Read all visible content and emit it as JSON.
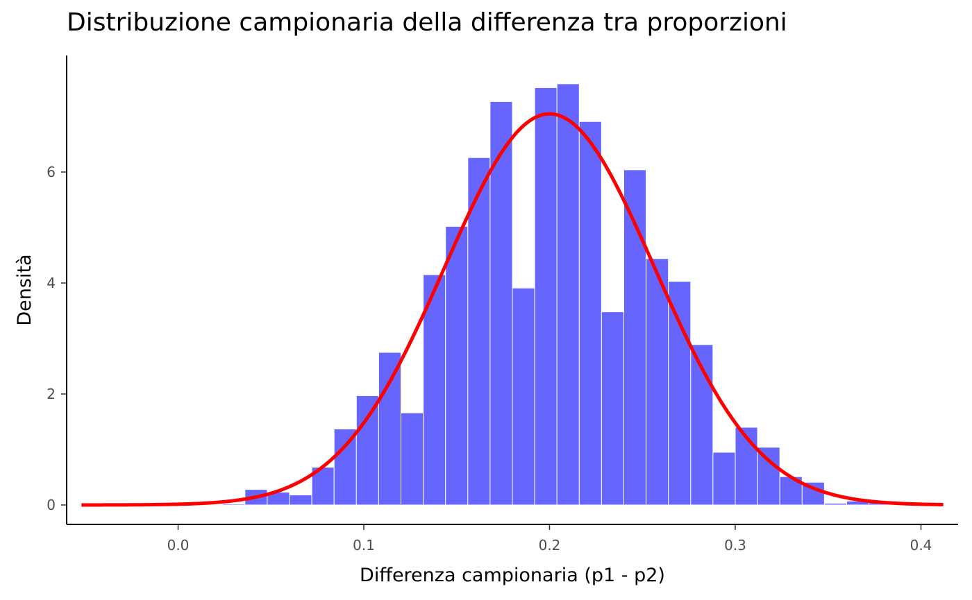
{
  "chart_data": {
    "type": "bar",
    "title": "Distribuzione campionaria della differenza tra proporzioni",
    "xlabel": "Differenza campionaria (p1 - p2)",
    "ylabel": "Densità",
    "xlim": [
      -0.06,
      0.42
    ],
    "ylim": [
      -0.35,
      8.1
    ],
    "x_ticks": [
      {
        "value": 0.0,
        "label": "0.0"
      },
      {
        "value": 0.1,
        "label": "0.1"
      },
      {
        "value": 0.2,
        "label": "0.2"
      },
      {
        "value": 0.3,
        "label": "0.3"
      },
      {
        "value": 0.4,
        "label": "0.4"
      }
    ],
    "y_ticks": [
      {
        "value": 0,
        "label": "0"
      },
      {
        "value": 2,
        "label": "2"
      },
      {
        "value": 4,
        "label": "4"
      },
      {
        "value": 6,
        "label": "6"
      }
    ],
    "grid": false,
    "series": [
      {
        "kind": "histogram",
        "color": "#6666ff",
        "edge_color": "#ffffff",
        "bin_width": 0.012,
        "bin_starts": [
          0.024,
          0.036,
          0.048,
          0.06,
          0.072,
          0.084,
          0.096,
          0.108,
          0.12,
          0.132,
          0.144,
          0.156,
          0.168,
          0.18,
          0.192,
          0.204,
          0.216,
          0.228,
          0.24,
          0.252,
          0.264,
          0.276,
          0.288,
          0.3,
          0.312,
          0.324,
          0.336,
          0.348,
          0.36,
          0.372
        ],
        "values": [
          0.02,
          0.28,
          0.23,
          0.18,
          0.68,
          1.37,
          1.97,
          2.75,
          1.66,
          4.15,
          5.02,
          6.26,
          7.27,
          3.91,
          7.52,
          7.59,
          6.91,
          3.48,
          6.04,
          4.44,
          4.03,
          2.89,
          0.95,
          1.4,
          1.04,
          0.51,
          0.41,
          0.03,
          0.07,
          0.05
        ]
      },
      {
        "kind": "density-curve",
        "color": "#ff0000",
        "distribution": "normal",
        "mean": 0.2,
        "sd": 0.0566,
        "x_range": [
          -0.052,
          0.412
        ]
      }
    ]
  }
}
